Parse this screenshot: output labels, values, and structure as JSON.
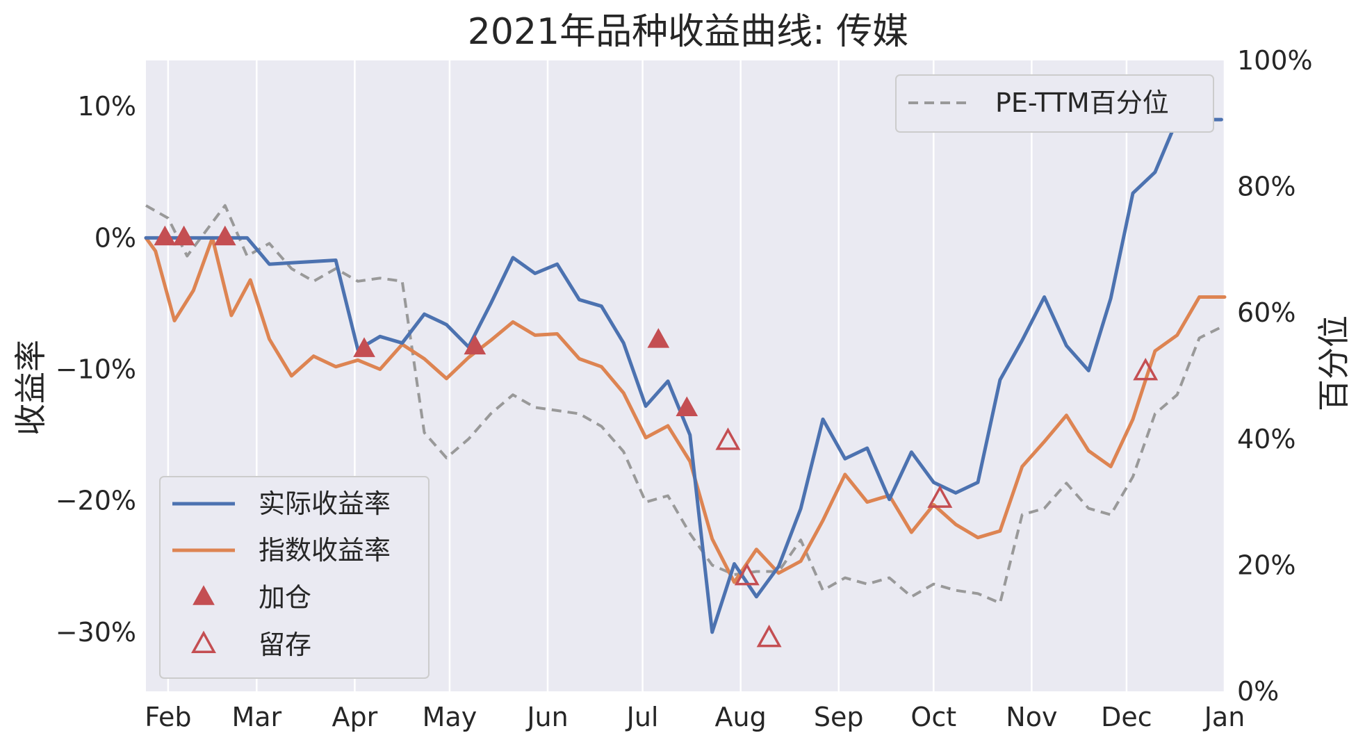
{
  "chart_data": {
    "type": "line",
    "title": "2021年品种收益曲线: 传媒",
    "ylabel_left": "收益率",
    "ylabel_right": "百分位",
    "x_tick_labels": [
      "Feb",
      "Mar",
      "Apr",
      "May",
      "Jun",
      "Jul",
      "Aug",
      "Sep",
      "Oct",
      "Nov",
      "Dec",
      "Jan"
    ],
    "x_tick_dates": [
      "2021-02-01",
      "2021-03-01",
      "2021-04-01",
      "2021-05-01",
      "2021-06-01",
      "2021-07-01",
      "2021-08-01",
      "2021-09-01",
      "2021-10-01",
      "2021-11-01",
      "2021-12-01",
      "2022-01-01"
    ],
    "xlim": [
      "2021-01-25",
      "2022-01-01"
    ],
    "y_left": {
      "lim": [
        -34.5,
        13.5
      ],
      "ticks": [
        10,
        0,
        -10,
        -20,
        -30
      ],
      "tick_labels": [
        "10%",
        "0%",
        "−10%",
        "−20%",
        "−30%"
      ]
    },
    "y_right": {
      "lim": [
        0,
        100
      ],
      "ticks": [
        100,
        80,
        60,
        40,
        20,
        0
      ],
      "tick_labels": [
        "100%",
        "80%",
        "60%",
        "40%",
        "20%",
        "0%"
      ]
    },
    "grid": "vertical",
    "background": "#eaeaf2",
    "series": [
      {
        "name": "实际收益率",
        "axis": "left",
        "color": "#4c72b0",
        "style": "solid",
        "x": [
          "2021-01-25",
          "2021-02-01",
          "2021-02-07",
          "2021-02-13",
          "2021-02-19",
          "2021-02-26",
          "2021-03-05",
          "2021-03-12",
          "2021-03-19",
          "2021-03-26",
          "2021-04-02",
          "2021-04-09",
          "2021-04-16",
          "2021-04-23",
          "2021-04-30",
          "2021-05-07",
          "2021-05-14",
          "2021-05-21",
          "2021-05-28",
          "2021-06-04",
          "2021-06-11",
          "2021-06-18",
          "2021-06-25",
          "2021-07-02",
          "2021-07-09",
          "2021-07-16",
          "2021-07-23",
          "2021-07-30",
          "2021-08-06",
          "2021-08-13",
          "2021-08-20",
          "2021-08-27",
          "2021-09-03",
          "2021-09-10",
          "2021-09-17",
          "2021-09-24",
          "2021-10-01",
          "2021-10-08",
          "2021-10-15",
          "2021-10-22",
          "2021-10-29",
          "2021-11-05",
          "2021-11-12",
          "2021-11-19",
          "2021-11-26",
          "2021-12-03",
          "2021-12-10",
          "2021-12-17",
          "2021-12-24",
          "2021-12-31"
        ],
        "y": [
          0.0,
          0.0,
          0.0,
          0.0,
          0.0,
          0.0,
          -2.0,
          -1.9,
          -1.8,
          -1.7,
          -8.5,
          -7.5,
          -8.0,
          -5.8,
          -6.6,
          -8.3,
          -5.0,
          -1.5,
          -2.7,
          -2.0,
          -4.7,
          -5.2,
          -8.0,
          -12.8,
          -10.9,
          -15.0,
          -30.0,
          -24.8,
          -27.3,
          -25.0,
          -20.6,
          -13.8,
          -16.8,
          -16.0,
          -19.9,
          -16.3,
          -18.6,
          -19.4,
          -18.6,
          -10.8,
          -7.8,
          -4.5,
          -8.2,
          -10.1,
          -4.6,
          3.4,
          5.0,
          9.0,
          9.0,
          9.0
        ]
      },
      {
        "name": "指数收益率",
        "axis": "left",
        "color": "#dd8452",
        "style": "solid",
        "x": [
          "2021-01-25",
          "2021-01-28",
          "2021-02-03",
          "2021-02-09",
          "2021-02-15",
          "2021-02-21",
          "2021-02-27",
          "2021-03-05",
          "2021-03-12",
          "2021-03-19",
          "2021-03-26",
          "2021-04-02",
          "2021-04-09",
          "2021-04-16",
          "2021-04-23",
          "2021-04-30",
          "2021-05-07",
          "2021-05-14",
          "2021-05-21",
          "2021-05-28",
          "2021-06-04",
          "2021-06-11",
          "2021-06-18",
          "2021-06-25",
          "2021-07-02",
          "2021-07-09",
          "2021-07-16",
          "2021-07-23",
          "2021-07-30",
          "2021-08-06",
          "2021-08-13",
          "2021-08-20",
          "2021-08-27",
          "2021-09-03",
          "2021-09-10",
          "2021-09-17",
          "2021-09-24",
          "2021-10-01",
          "2021-10-08",
          "2021-10-15",
          "2021-10-22",
          "2021-10-29",
          "2021-11-05",
          "2021-11-12",
          "2021-11-19",
          "2021-11-26",
          "2021-12-03",
          "2021-12-10",
          "2021-12-17",
          "2021-12-24",
          "2022-01-01"
        ],
        "y": [
          0.0,
          -1.0,
          -6.3,
          -4.0,
          0.0,
          -5.9,
          -3.2,
          -7.7,
          -10.5,
          -9.0,
          -9.8,
          -9.3,
          -10.0,
          -8.1,
          -9.2,
          -10.7,
          -9.1,
          -7.8,
          -6.4,
          -7.4,
          -7.3,
          -9.2,
          -9.8,
          -11.8,
          -15.2,
          -14.3,
          -17.0,
          -22.9,
          -26.2,
          -23.7,
          -25.5,
          -24.6,
          -21.5,
          -18.0,
          -20.1,
          -19.6,
          -22.4,
          -20.3,
          -21.8,
          -22.8,
          -22.3,
          -17.4,
          -15.5,
          -13.5,
          -16.2,
          -17.4,
          -13.8,
          -8.6,
          -7.4,
          -4.5,
          -4.5
        ]
      },
      {
        "name": "PE-TTM百分位",
        "axis": "right",
        "color": "#999999",
        "style": "dashed",
        "x": [
          "2021-01-25",
          "2021-02-01",
          "2021-02-07",
          "2021-02-13",
          "2021-02-19",
          "2021-02-26",
          "2021-03-05",
          "2021-03-12",
          "2021-03-19",
          "2021-03-26",
          "2021-04-02",
          "2021-04-09",
          "2021-04-16",
          "2021-04-23",
          "2021-04-30",
          "2021-05-07",
          "2021-05-14",
          "2021-05-21",
          "2021-05-28",
          "2021-06-04",
          "2021-06-11",
          "2021-06-18",
          "2021-06-25",
          "2021-07-02",
          "2021-07-09",
          "2021-07-16",
          "2021-07-23",
          "2021-07-30",
          "2021-08-06",
          "2021-08-13",
          "2021-08-20",
          "2021-08-27",
          "2021-09-03",
          "2021-09-10",
          "2021-09-17",
          "2021-09-24",
          "2021-10-01",
          "2021-10-08",
          "2021-10-15",
          "2021-10-22",
          "2021-10-29",
          "2021-11-05",
          "2021-11-12",
          "2021-11-19",
          "2021-11-26",
          "2021-12-03",
          "2021-12-10",
          "2021-12-17",
          "2021-12-24",
          "2022-01-01"
        ],
        "y": [
          77,
          75,
          69,
          73,
          77,
          69,
          71,
          67,
          65,
          67,
          65,
          65.5,
          65,
          41,
          37,
          40,
          44,
          47,
          45,
          44.5,
          44,
          42,
          38,
          30,
          31,
          25,
          20,
          18.5,
          19,
          19,
          24,
          16,
          18,
          17,
          18,
          15,
          17,
          16,
          15.5,
          14,
          28,
          29,
          33,
          29,
          28,
          34,
          44,
          47,
          56,
          58
        ]
      }
    ],
    "markers": [
      {
        "name": "加仓",
        "style": "filled-triangle",
        "color": "#c44e52",
        "x": [
          "2021-01-31",
          "2021-02-06",
          "2021-02-19",
          "2021-04-04",
          "2021-05-09",
          "2021-07-06",
          "2021-07-15"
        ],
        "y": [
          0,
          0,
          0,
          -8.5,
          -8.3,
          -7.8,
          -13.0
        ]
      },
      {
        "name": "留存",
        "style": "hollow-triangle",
        "color": "#c44e52",
        "x": [
          "2021-07-28",
          "2021-08-03",
          "2021-08-10",
          "2021-10-03",
          "2021-12-07"
        ],
        "y": [
          -15.5,
          -25.8,
          -30.5,
          -19.9,
          -10.2
        ]
      }
    ],
    "legends": [
      {
        "position": "lower-left",
        "entries": [
          "实际收益率",
          "指数收益率",
          "加仓",
          "留存"
        ]
      },
      {
        "position": "upper-right",
        "entries": [
          "PE-TTM百分位"
        ]
      }
    ]
  }
}
